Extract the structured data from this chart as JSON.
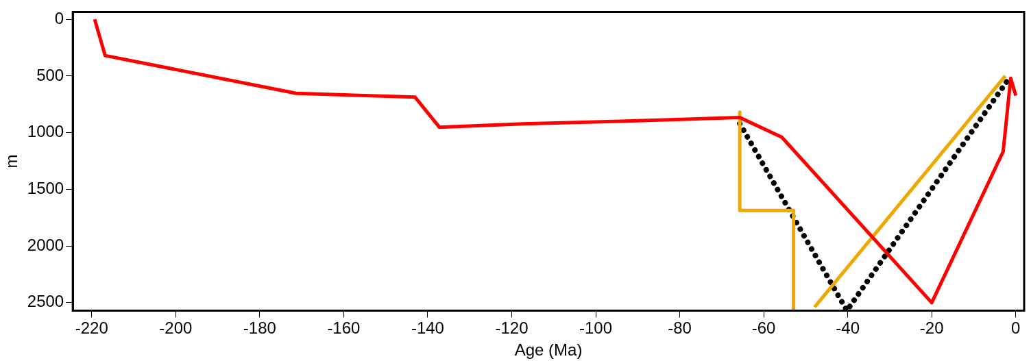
{
  "chart_data": {
    "type": "line",
    "xlabel": "Age (Ma)",
    "ylabel": "m",
    "xlim": [
      -224.5,
      2
    ],
    "ylim": [
      2570,
      -65
    ],
    "xticks": [
      -220,
      -200,
      -180,
      -160,
      -140,
      -120,
      -100,
      -80,
      -60,
      -40,
      -20,
      0
    ],
    "yticks": [
      0,
      500,
      1000,
      1500,
      2000,
      2500
    ],
    "grid": false,
    "legend": false,
    "marker": "none",
    "series": [
      {
        "color": "#ff0000",
        "line_style": "solid",
        "x": [
          -219.3,
          -216.8,
          -171.3,
          -143,
          -137.2,
          -115.6,
          -94,
          -65.7,
          -55.7,
          -20,
          -3,
          -1.2,
          0
        ],
        "values": [
          0,
          320,
          653,
          687,
          953,
          920,
          900,
          867,
          1040,
          2500,
          1167,
          520,
          673
        ]
      },
      {
        "color": "#f0a800",
        "line_style": "solid",
        "x": [
          -65.7,
          -65.7,
          -52.9,
          -52.9
        ],
        "values": [
          820,
          1687,
          1687,
          2570
        ]
      },
      {
        "color": "#f0a800",
        "line_style": "solid",
        "x": [
          -47.9,
          -2.5
        ],
        "values": [
          2540,
          500
        ]
      },
      {
        "color": "#000000",
        "line_style": "dotted",
        "x": [
          -65.7,
          -40.2,
          -1.2
        ],
        "values": [
          920,
          2570,
          500
        ]
      }
    ]
  }
}
